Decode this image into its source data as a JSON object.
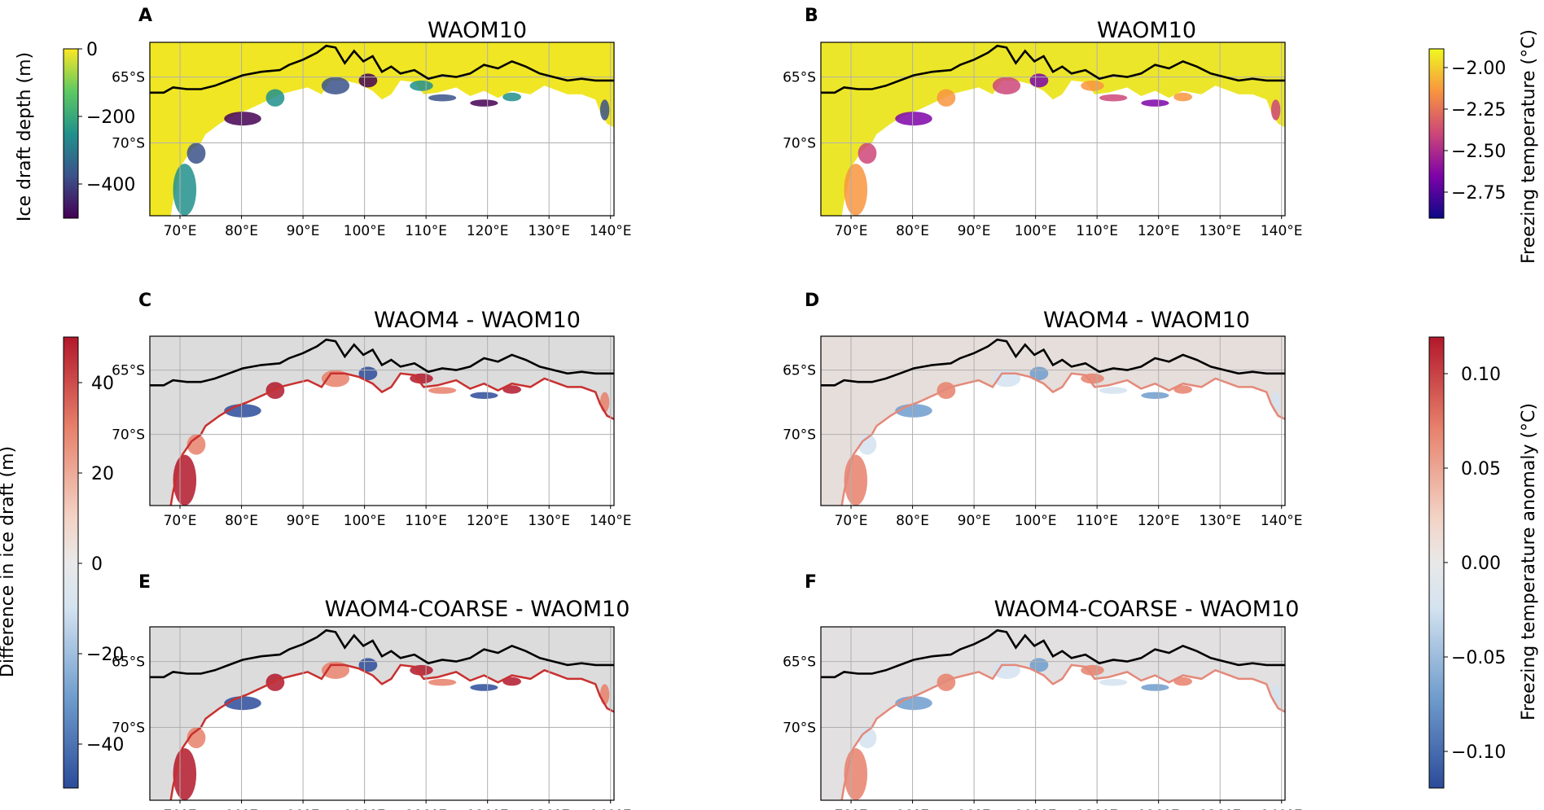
{
  "figure": {
    "colors": {
      "land": "#ffffff",
      "ice_viridis_stops": [
        "#440154",
        "#3b528b",
        "#21918c",
        "#5ec962",
        "#fde725"
      ],
      "plasma_stops": [
        "#0d0887",
        "#7e03a8",
        "#cc4778",
        "#f89540",
        "#f0f921"
      ],
      "rdbu_stops": [
        "#2c4b9a",
        "#6f9ccd",
        "#d4e3f0",
        "#e0e0e0",
        "#f3d3c5",
        "#e7806b",
        "#b2182b"
      ],
      "frame": "#000000",
      "grid": "#b0b0b0"
    },
    "x_ticks": [
      "70°E",
      "80°E",
      "90°E",
      "100°E",
      "110°E",
      "120°E",
      "130°E",
      "140°E"
    ],
    "y_ticks": [
      "65°S",
      "70°S"
    ]
  },
  "panels": [
    {
      "id": "A",
      "title": "WAOM10",
      "field": "ice_draft_depth",
      "colormap": "viridis"
    },
    {
      "id": "B",
      "title": "WAOM10",
      "field": "freezing_temperature",
      "colormap": "plasma"
    },
    {
      "id": "C",
      "title": "WAOM4 - WAOM10",
      "field": "ice_draft_difference",
      "colormap": "RdBu_r"
    },
    {
      "id": "D",
      "title": "WAOM4 - WAOM10",
      "field": "freezing_temperature_anomaly",
      "colormap": "RdBu_r"
    },
    {
      "id": "E",
      "title": "WAOM4-COARSE - WAOM10",
      "field": "ice_draft_difference",
      "colormap": "RdBu_r"
    },
    {
      "id": "F",
      "title": "WAOM4-COARSE - WAOM10",
      "field": "freezing_temperature_anomaly",
      "colormap": "RdBu_r"
    }
  ],
  "colorbars": [
    {
      "id": "ice-draft-depth",
      "label": "Ice draft depth (m)",
      "ticks": [
        "0",
        "−200",
        "−400"
      ],
      "range": [
        -500,
        0
      ]
    },
    {
      "id": "freezing-temperature",
      "label": "Freezing temperature (°C)",
      "ticks": [
        "−2.00",
        "−2.25",
        "−2.50",
        "−2.75"
      ],
      "range": [
        -2.9,
        -1.88
      ]
    },
    {
      "id": "ice-draft-difference",
      "label": "Difference in ice draft (m)",
      "ticks": [
        "40",
        "20",
        "0",
        "−20",
        "−40"
      ],
      "range": [
        -50,
        50
      ]
    },
    {
      "id": "freezing-temperature-anomaly",
      "label": "Freezing temperature anomaly (°C)",
      "ticks": [
        "0.10",
        "0.05",
        "0.00",
        "−0.05",
        "−0.10"
      ],
      "range": [
        -0.12,
        0.12
      ]
    }
  ]
}
